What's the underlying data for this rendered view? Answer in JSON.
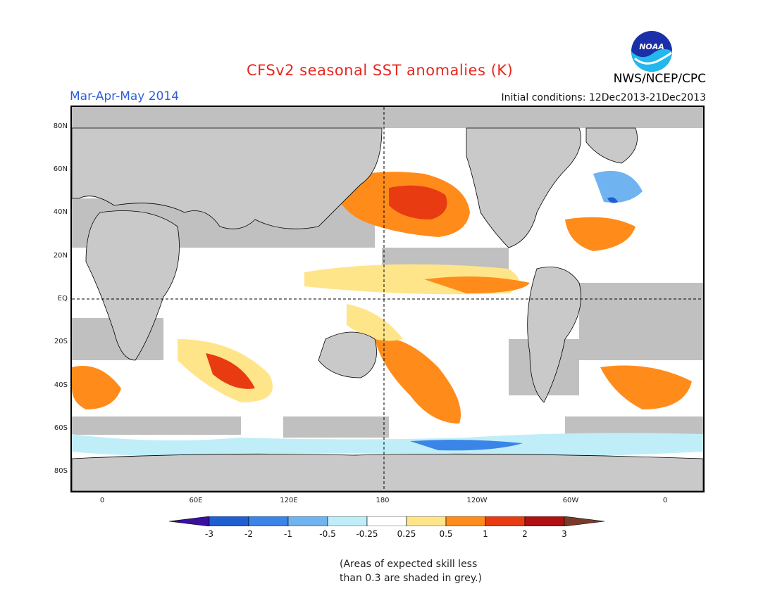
{
  "header": {
    "title": "CFSv2 seasonal SST anomalies (K)",
    "season": "Mar-Apr-May 2014",
    "initial_conditions": "Initial conditions: 12Dec2013-21Dec2013",
    "organization": "NWS/NCEP/CPC",
    "logo_text": "NOAA"
  },
  "map": {
    "lat_ticks": [
      "80N",
      "60N",
      "40N",
      "20N",
      "EQ",
      "20S",
      "40S",
      "60S",
      "80S"
    ],
    "lon_ticks": [
      "0",
      "60E",
      "120E",
      "180",
      "120W",
      "60W",
      "0"
    ],
    "land_color": "#c9c9c9",
    "no_skill_color": "#c0c0c0"
  },
  "colorbar": {
    "labels": [
      "-3",
      "-2",
      "-1",
      "-0.5",
      "-0.25",
      "0.25",
      "0.5",
      "1",
      "2",
      "3"
    ],
    "colors": [
      "#3b0fa0",
      "#1f5fd2",
      "#3b85e8",
      "#6fb4f0",
      "#bfeef8",
      "#ffffff",
      "#ffe58a",
      "#ff8c1a",
      "#e83b12",
      "#b01010",
      "#7a3a2a"
    ]
  },
  "note": {
    "line1": "(Areas of expected skill less",
    "line2": "than 0.3 are shaded in grey.)"
  }
}
